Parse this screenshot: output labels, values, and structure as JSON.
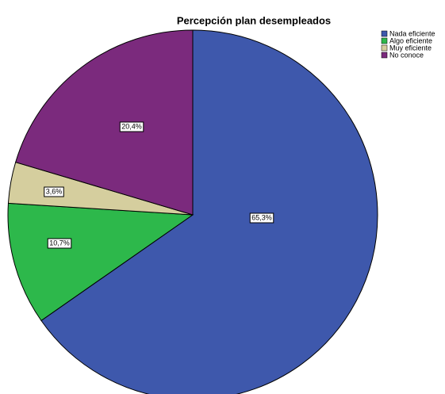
{
  "chart_data": {
    "type": "pie",
    "title": "Percepción plan desempleados",
    "categories": [
      "Nada eficiente",
      "Algo eficiente",
      "Muy eficiente",
      "No conoce"
    ],
    "values": [
      65.3,
      10.7,
      3.6,
      20.4
    ],
    "value_labels": [
      "65,3%",
      "10,7%",
      "3,6%",
      "20,4%"
    ],
    "colors": [
      "#3e58ac",
      "#2db84b",
      "#d5ce9e",
      "#7b2a7d"
    ],
    "legend": "top-right"
  }
}
